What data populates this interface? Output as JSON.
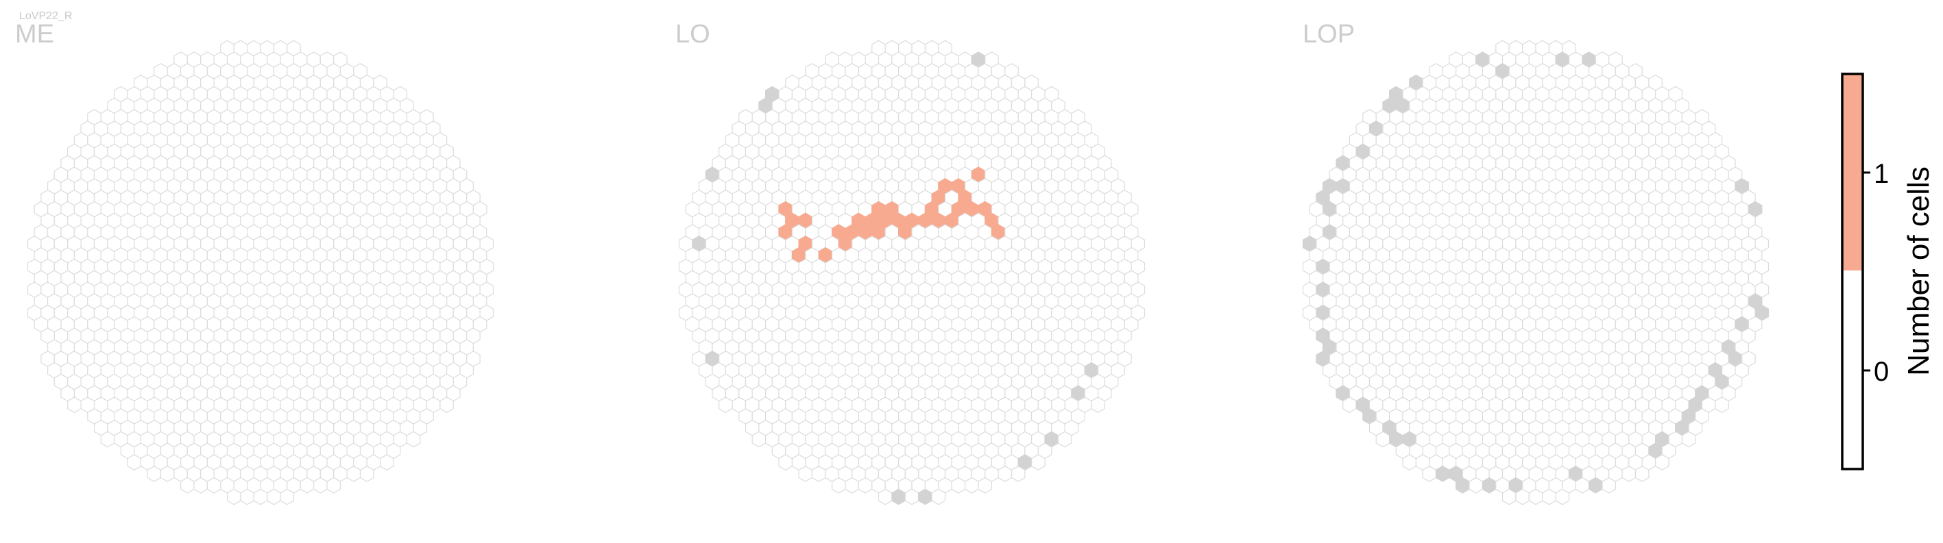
{
  "cell_type": "LoVP22_R",
  "colors": {
    "empty_fill": "#ffffff",
    "empty_stroke": "#dcdcdc",
    "no_data": "#d3d3d3",
    "count_1": "#f7aa8f"
  },
  "chart_data": {
    "type": "heatmap",
    "description_type": "hexagonal column map per neuropil",
    "hex_grid": "optic-lobe column hexagonal lattice",
    "panels": [
      {
        "name": "ME",
        "counts": [],
        "gray": []
      },
      {
        "name": "LO",
        "counts": [
          [
            8,
            14,
            1
          ],
          [
            8,
            15,
            1
          ],
          [
            8,
            16,
            1
          ],
          [
            9,
            15,
            1
          ],
          [
            9,
            17,
            1
          ],
          [
            9,
            18,
            1
          ],
          [
            11,
            18,
            1
          ],
          [
            12,
            16,
            1
          ],
          [
            12,
            17,
            1
          ],
          [
            13,
            15,
            1
          ],
          [
            13,
            16,
            1
          ],
          [
            14,
            15,
            1
          ],
          [
            14,
            16,
            1
          ],
          [
            15,
            14,
            1
          ],
          [
            15,
            15,
            1
          ],
          [
            15,
            16,
            1
          ],
          [
            16,
            14,
            1
          ],
          [
            16,
            15,
            1
          ],
          [
            17,
            15,
            1
          ],
          [
            17,
            16,
            1
          ],
          [
            18,
            15,
            1
          ],
          [
            19,
            13,
            1
          ],
          [
            19,
            14,
            1
          ],
          [
            19,
            15,
            1
          ],
          [
            20,
            12,
            1
          ],
          [
            20,
            15,
            1
          ],
          [
            21,
            12,
            1
          ],
          [
            21,
            13,
            1
          ],
          [
            21,
            14,
            1
          ],
          [
            22,
            11,
            1
          ],
          [
            22,
            14,
            1
          ],
          [
            23,
            14,
            1
          ],
          [
            23,
            15,
            1
          ],
          [
            24,
            16,
            1
          ]
        ],
        "gray": [
          [
            1,
            17
          ],
          [
            2,
            27
          ],
          [
            2,
            11
          ],
          [
            6,
            5
          ],
          [
            7,
            4
          ],
          [
            12,
            39
          ],
          [
            14,
            39
          ],
          [
            16,
            39
          ],
          [
            18,
            39
          ],
          [
            20,
            39
          ],
          [
            22,
            1
          ],
          [
            24,
            38
          ],
          [
            26,
            1
          ],
          [
            26,
            36
          ],
          [
            28,
            34
          ],
          [
            30,
            30
          ],
          [
            31,
            28
          ]
        ]
      },
      {
        "name": "LOP",
        "counts": [],
        "gray": [
          [
            0,
            17
          ],
          [
            1,
            13
          ],
          [
            1,
            19
          ],
          [
            1,
            21
          ],
          [
            1,
            23
          ],
          [
            1,
            25
          ],
          [
            1,
            27
          ],
          [
            2,
            12
          ],
          [
            2,
            14
          ],
          [
            2,
            16
          ],
          [
            2,
            26
          ],
          [
            3,
            10
          ],
          [
            3,
            12
          ],
          [
            3,
            30
          ],
          [
            4,
            9
          ],
          [
            4,
            31
          ],
          [
            5,
            7
          ],
          [
            5,
            32
          ],
          [
            6,
            33
          ],
          [
            6,
            5
          ],
          [
            7,
            5
          ],
          [
            7,
            4
          ],
          [
            7,
            34
          ],
          [
            8,
            3
          ],
          [
            8,
            34
          ],
          [
            9,
            2
          ],
          [
            10,
            37
          ],
          [
            11,
            37
          ],
          [
            12,
            38
          ],
          [
            13,
            1
          ],
          [
            14,
            38
          ],
          [
            15,
            2
          ],
          [
            16,
            38
          ],
          [
            19,
            1
          ],
          [
            20,
            37
          ],
          [
            21,
            1
          ],
          [
            22,
            38
          ],
          [
            26,
            35
          ],
          [
            27,
            34
          ],
          [
            28,
            33
          ],
          [
            29,
            31
          ],
          [
            29,
            32
          ],
          [
            30,
            30
          ],
          [
            31,
            29
          ],
          [
            31,
            28
          ],
          [
            32,
            26
          ],
          [
            32,
            27
          ],
          [
            33,
            24
          ],
          [
            33,
            10
          ],
          [
            33,
            12
          ],
          [
            34,
            22
          ],
          [
            34,
            14
          ],
          [
            35,
            16
          ],
          [
            35,
            18
          ],
          [
            35,
            20
          ],
          [
            34,
            23
          ]
        ]
      }
    ],
    "colorbar": {
      "label": "Number of cells",
      "ticks": [
        0,
        1
      ],
      "levels": [
        {
          "value": 0,
          "color": "#ffffff"
        },
        {
          "value": 1,
          "color": "#f7aa8f"
        }
      ],
      "range": [
        -0.5,
        1.5
      ]
    }
  }
}
